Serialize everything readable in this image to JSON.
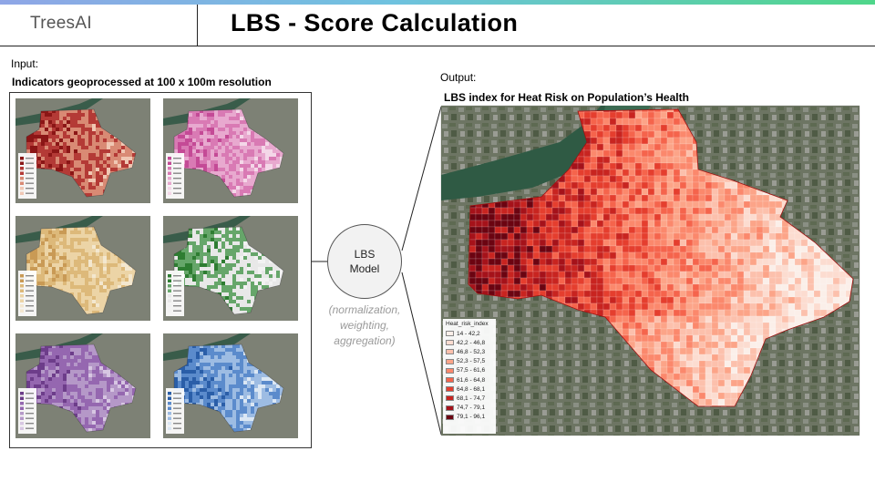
{
  "header": {
    "logo_text": "TreesAI",
    "title": "LBS - Score Calculation"
  },
  "input": {
    "label": "Input:",
    "subtitle": "Indicators geoprocessed at 100 x 100m resolution"
  },
  "model": {
    "line1": "LBS",
    "line2": "Model",
    "caption": "(normalization, weighting, aggregation)"
  },
  "output": {
    "label": "Output:",
    "subtitle": "LBS index for Heat Risk on Population’s Health",
    "legend": {
      "title": "Heat_risk_index",
      "items": [
        {
          "label": "14 - 42,2",
          "color": "#fbefe9"
        },
        {
          "label": "42,2 - 46,8",
          "color": "#fcdcd0"
        },
        {
          "label": "46,8 - 52,3",
          "color": "#fcc0ac"
        },
        {
          "label": "52,3 - 57,5",
          "color": "#fca488"
        },
        {
          "label": "57,5 - 61,6",
          "color": "#fb886c"
        },
        {
          "label": "61,6 - 64,8",
          "color": "#f5644c"
        },
        {
          "label": "64,8 - 68,1",
          "color": "#e53e2e"
        },
        {
          "label": "68,1 - 74,7",
          "color": "#c82420"
        },
        {
          "label": "74,7 - 79,1",
          "color": "#a5121a"
        },
        {
          "label": "79,1 - 96,1",
          "color": "#6b0411"
        }
      ]
    }
  },
  "thumbnails": [
    {
      "name": "indicator-map-red",
      "colors": [
        "#8b1616",
        "#b43a36",
        "#d98a74",
        "#f0c7b3"
      ]
    },
    {
      "name": "indicator-map-magenta",
      "colors": [
        "#c44a96",
        "#d97ab4",
        "#e8a9cf",
        "#f4d7e8"
      ]
    },
    {
      "name": "indicator-map-tan",
      "colors": [
        "#c99a55",
        "#ddb97a",
        "#ecd4a6",
        "#f3e7cf"
      ]
    },
    {
      "name": "indicator-map-green",
      "colors": [
        "#2e7d32",
        "#66a66a",
        "#e8e8e8",
        "#f2f2f2"
      ]
    },
    {
      "name": "indicator-map-purple",
      "colors": [
        "#6d3d8a",
        "#9567b0",
        "#b598c8",
        "#d7c6e2"
      ]
    },
    {
      "name": "indicator-map-blue",
      "colors": [
        "#2a5ea8",
        "#5b8bcc",
        "#9dbce3",
        "#dbe7f4"
      ]
    }
  ]
}
